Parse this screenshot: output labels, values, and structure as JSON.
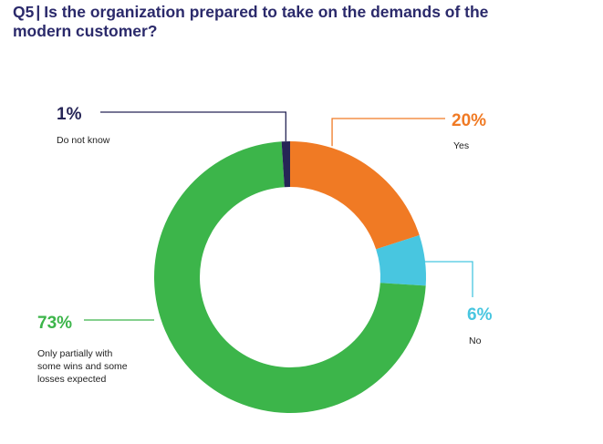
{
  "question": {
    "number": "Q5",
    "separator": "|",
    "line1": "Is the organization prepared to take on the demands of the",
    "line2": "modern customer?"
  },
  "colors": {
    "title": "#2b2a6b",
    "yes": "#f07a24",
    "no": "#48c6e0",
    "only_partially": "#3cb54a",
    "do_not_know": "#262556"
  },
  "chart_data": {
    "type": "pie",
    "style": "donut",
    "title": "Is the organization prepared to take on the demands of the modern customer?",
    "slices": [
      {
        "key": "yes",
        "label": "Yes",
        "value": 20,
        "value_label": "20%",
        "color": "#f07a24"
      },
      {
        "key": "no",
        "label": "No",
        "value": 6,
        "value_label": "6%",
        "color": "#48c6e0"
      },
      {
        "key": "partial",
        "label_lines": [
          "Only partially with",
          "some wins and some",
          "losses expected"
        ],
        "value": 73,
        "value_label": "73%",
        "color": "#3cb54a"
      },
      {
        "key": "dnk",
        "label": "Do not know",
        "value": 1,
        "value_label": "1%",
        "color": "#262556"
      }
    ]
  }
}
